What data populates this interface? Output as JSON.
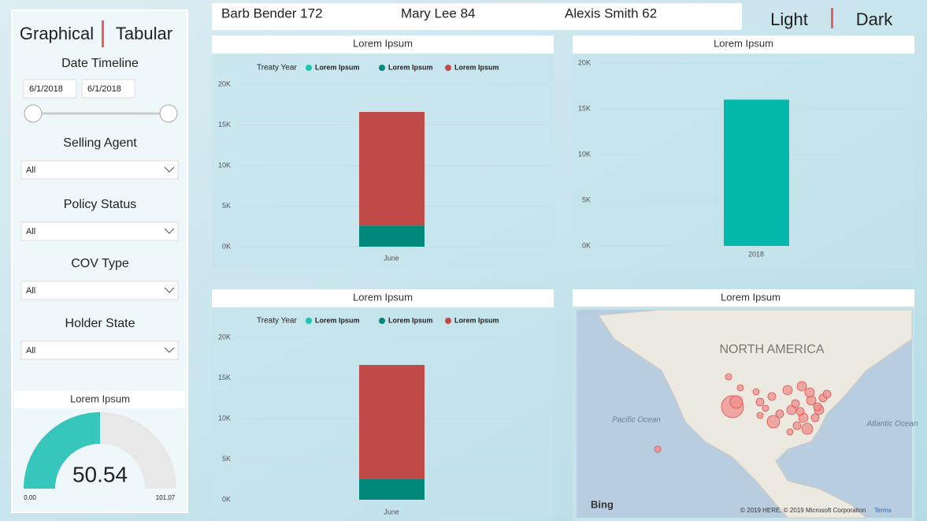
{
  "header": {
    "view_toggle": [
      "Graphical",
      "Tabular"
    ],
    "theme_toggle": [
      "Light",
      "Dark"
    ],
    "agents": [
      "Barb Bender 172",
      "Mary Lee 84",
      "Alexis Smith 62"
    ]
  },
  "filters": {
    "date_title": "Date Timeline",
    "dates": [
      "6/1/2018",
      "6/1/2018"
    ],
    "slicers": [
      {
        "label": "Selling Agent",
        "value": "All"
      },
      {
        "label": "Policy Status",
        "value": "All"
      },
      {
        "label": "COV Type",
        "value": "All"
      },
      {
        "label": "Holder State",
        "value": "All"
      }
    ]
  },
  "chart_data": [
    {
      "type": "stacked_bar",
      "title": "Lorem Ipsum",
      "legend_title": "Treaty Year",
      "categories": [
        "June"
      ],
      "series": [
        {
          "name": "Lorem Ipsum",
          "color": "#1ec4b4",
          "values": [
            0
          ]
        },
        {
          "name": "Lorem Ipsum",
          "color": "#00897b",
          "values": [
            2600
          ]
        },
        {
          "name": "Lorem Ipsum",
          "color": "#c04a47",
          "values": [
            14000
          ]
        }
      ],
      "ylim": [
        0,
        20000
      ],
      "yticks": [
        {
          "value": 0,
          "label": "0K"
        },
        {
          "value": 5000,
          "label": "5K"
        },
        {
          "value": 10000,
          "label": "10K"
        },
        {
          "value": 15000,
          "label": "15K"
        },
        {
          "value": 20000,
          "label": "20K"
        }
      ],
      "grid": true
    },
    {
      "type": "bar",
      "title": "Lorem Ipsum",
      "categories": [
        "2018"
      ],
      "values": [
        16000
      ],
      "color": "#01b8aa",
      "ylim": [
        0,
        20000
      ],
      "yticks": [
        {
          "value": 0,
          "label": "0K"
        },
        {
          "value": 5000,
          "label": "5K"
        },
        {
          "value": 10000,
          "label": "10K"
        },
        {
          "value": 15000,
          "label": "15K"
        },
        {
          "value": 20000,
          "label": "20K"
        }
      ],
      "grid": true
    },
    {
      "type": "stacked_bar",
      "title": "Lorem Ipsum",
      "legend_title": "Treaty Year",
      "categories": [
        "June"
      ],
      "series": [
        {
          "name": "Lorem Ipsum",
          "color": "#1ec4b4",
          "values": [
            0
          ]
        },
        {
          "name": "Lorem Ipsum",
          "color": "#00897b",
          "values": [
            2600
          ]
        },
        {
          "name": "Lorem Ipsum",
          "color": "#c04a47",
          "values": [
            14000
          ]
        }
      ],
      "ylim": [
        0,
        20000
      ],
      "yticks": [
        {
          "value": 0,
          "label": "0K"
        },
        {
          "value": 5000,
          "label": "5K"
        },
        {
          "value": 10000,
          "label": "10K"
        },
        {
          "value": 15000,
          "label": "15K"
        },
        {
          "value": 20000,
          "label": "20K"
        }
      ],
      "grid": true
    },
    {
      "type": "gauge",
      "title": "Lorem Ipsum",
      "value": 50.54,
      "min": {
        "value": 0,
        "label": "0.00"
      },
      "max": 101.07,
      "color": "#37c6bc",
      "track_color": "#e8e8e8"
    }
  ],
  "map": {
    "title": "Lorem Ipsum",
    "continent": "NORTH AMERICA",
    "oceans": [
      "Pacific Ocean",
      "Atlantic Ocean"
    ],
    "provider": "Bing",
    "copyright": "© 2019 HERE, © 2019 Microsoft Corporation",
    "terms": "Terms"
  }
}
